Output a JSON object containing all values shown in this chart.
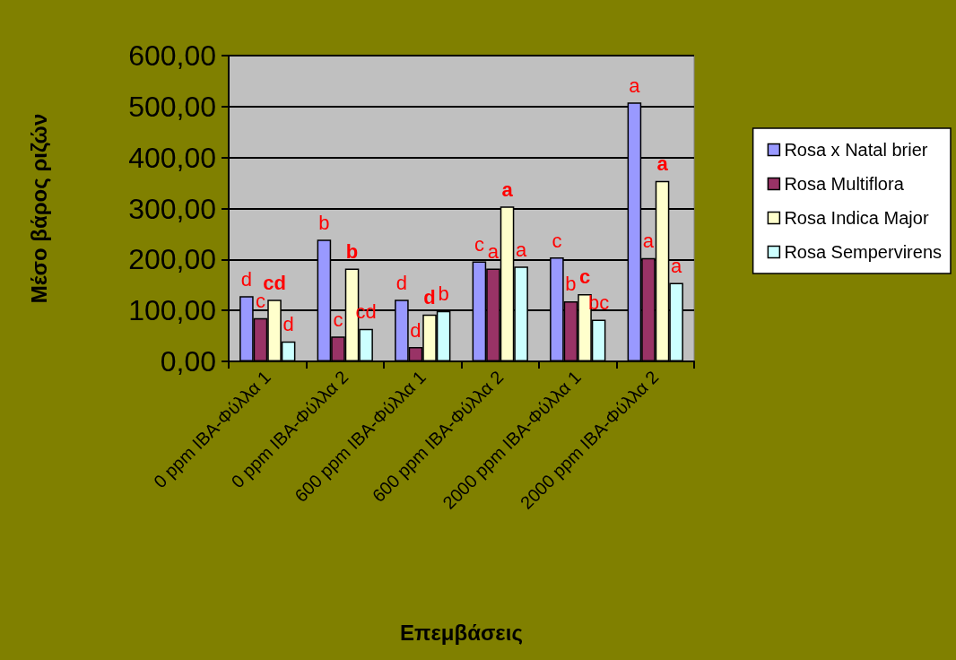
{
  "chart_data": {
    "type": "bar",
    "xlabel": "Επεμβάσεις",
    "ylabel": "Μέσο βάρος ριζών",
    "categories": [
      "0 ppm IBA-Φύλλα 1",
      "0 ppm IBA-Φύλλα 2",
      "600 ppm IBA-Φύλλα 1",
      "600 ppm IBA-Φύλλα 2",
      "2000 ppm IBA-Φύλλα 1",
      "2000 ppm IBA-Φύλλα 2"
    ],
    "series": [
      {
        "name": "Rosa x Natal brier",
        "color": "#9999ff",
        "values": [
          128,
          239,
          121,
          196,
          204,
          508
        ],
        "value_labels": [
          "d",
          "b",
          "d",
          "c",
          "c",
          "a"
        ]
      },
      {
        "name": "Rosa Multiflora",
        "color": "#993366",
        "values": [
          85,
          49,
          28,
          182,
          118,
          203
        ],
        "value_labels": [
          "c",
          "c",
          "d",
          "a",
          "b",
          "a"
        ]
      },
      {
        "name": "Rosa Indica Major",
        "color": "#ffffcc",
        "values": [
          121,
          182,
          92,
          304,
          132,
          354
        ],
        "value_labels": [
          "cd",
          "b",
          "d",
          "a",
          "c",
          "a"
        ]
      },
      {
        "name": "Rosa Sempervirens",
        "color": "#ccffff",
        "values": [
          39,
          64,
          99,
          186,
          82,
          154
        ],
        "value_labels": [
          "d",
          "cd",
          "b",
          "a",
          "bc",
          "a"
        ]
      }
    ],
    "ylim": [
      0,
      600
    ],
    "yticks": [
      {
        "value": 0,
        "label": "0,00"
      },
      {
        "value": 100,
        "label": "100,00"
      },
      {
        "value": 200,
        "label": "200,00"
      },
      {
        "value": 300,
        "label": "300,00"
      },
      {
        "value": 400,
        "label": "400,00"
      },
      {
        "value": 500,
        "label": "500,00"
      },
      {
        "value": 600,
        "label": "600,00"
      }
    ],
    "grid": "y",
    "legend": "right"
  }
}
